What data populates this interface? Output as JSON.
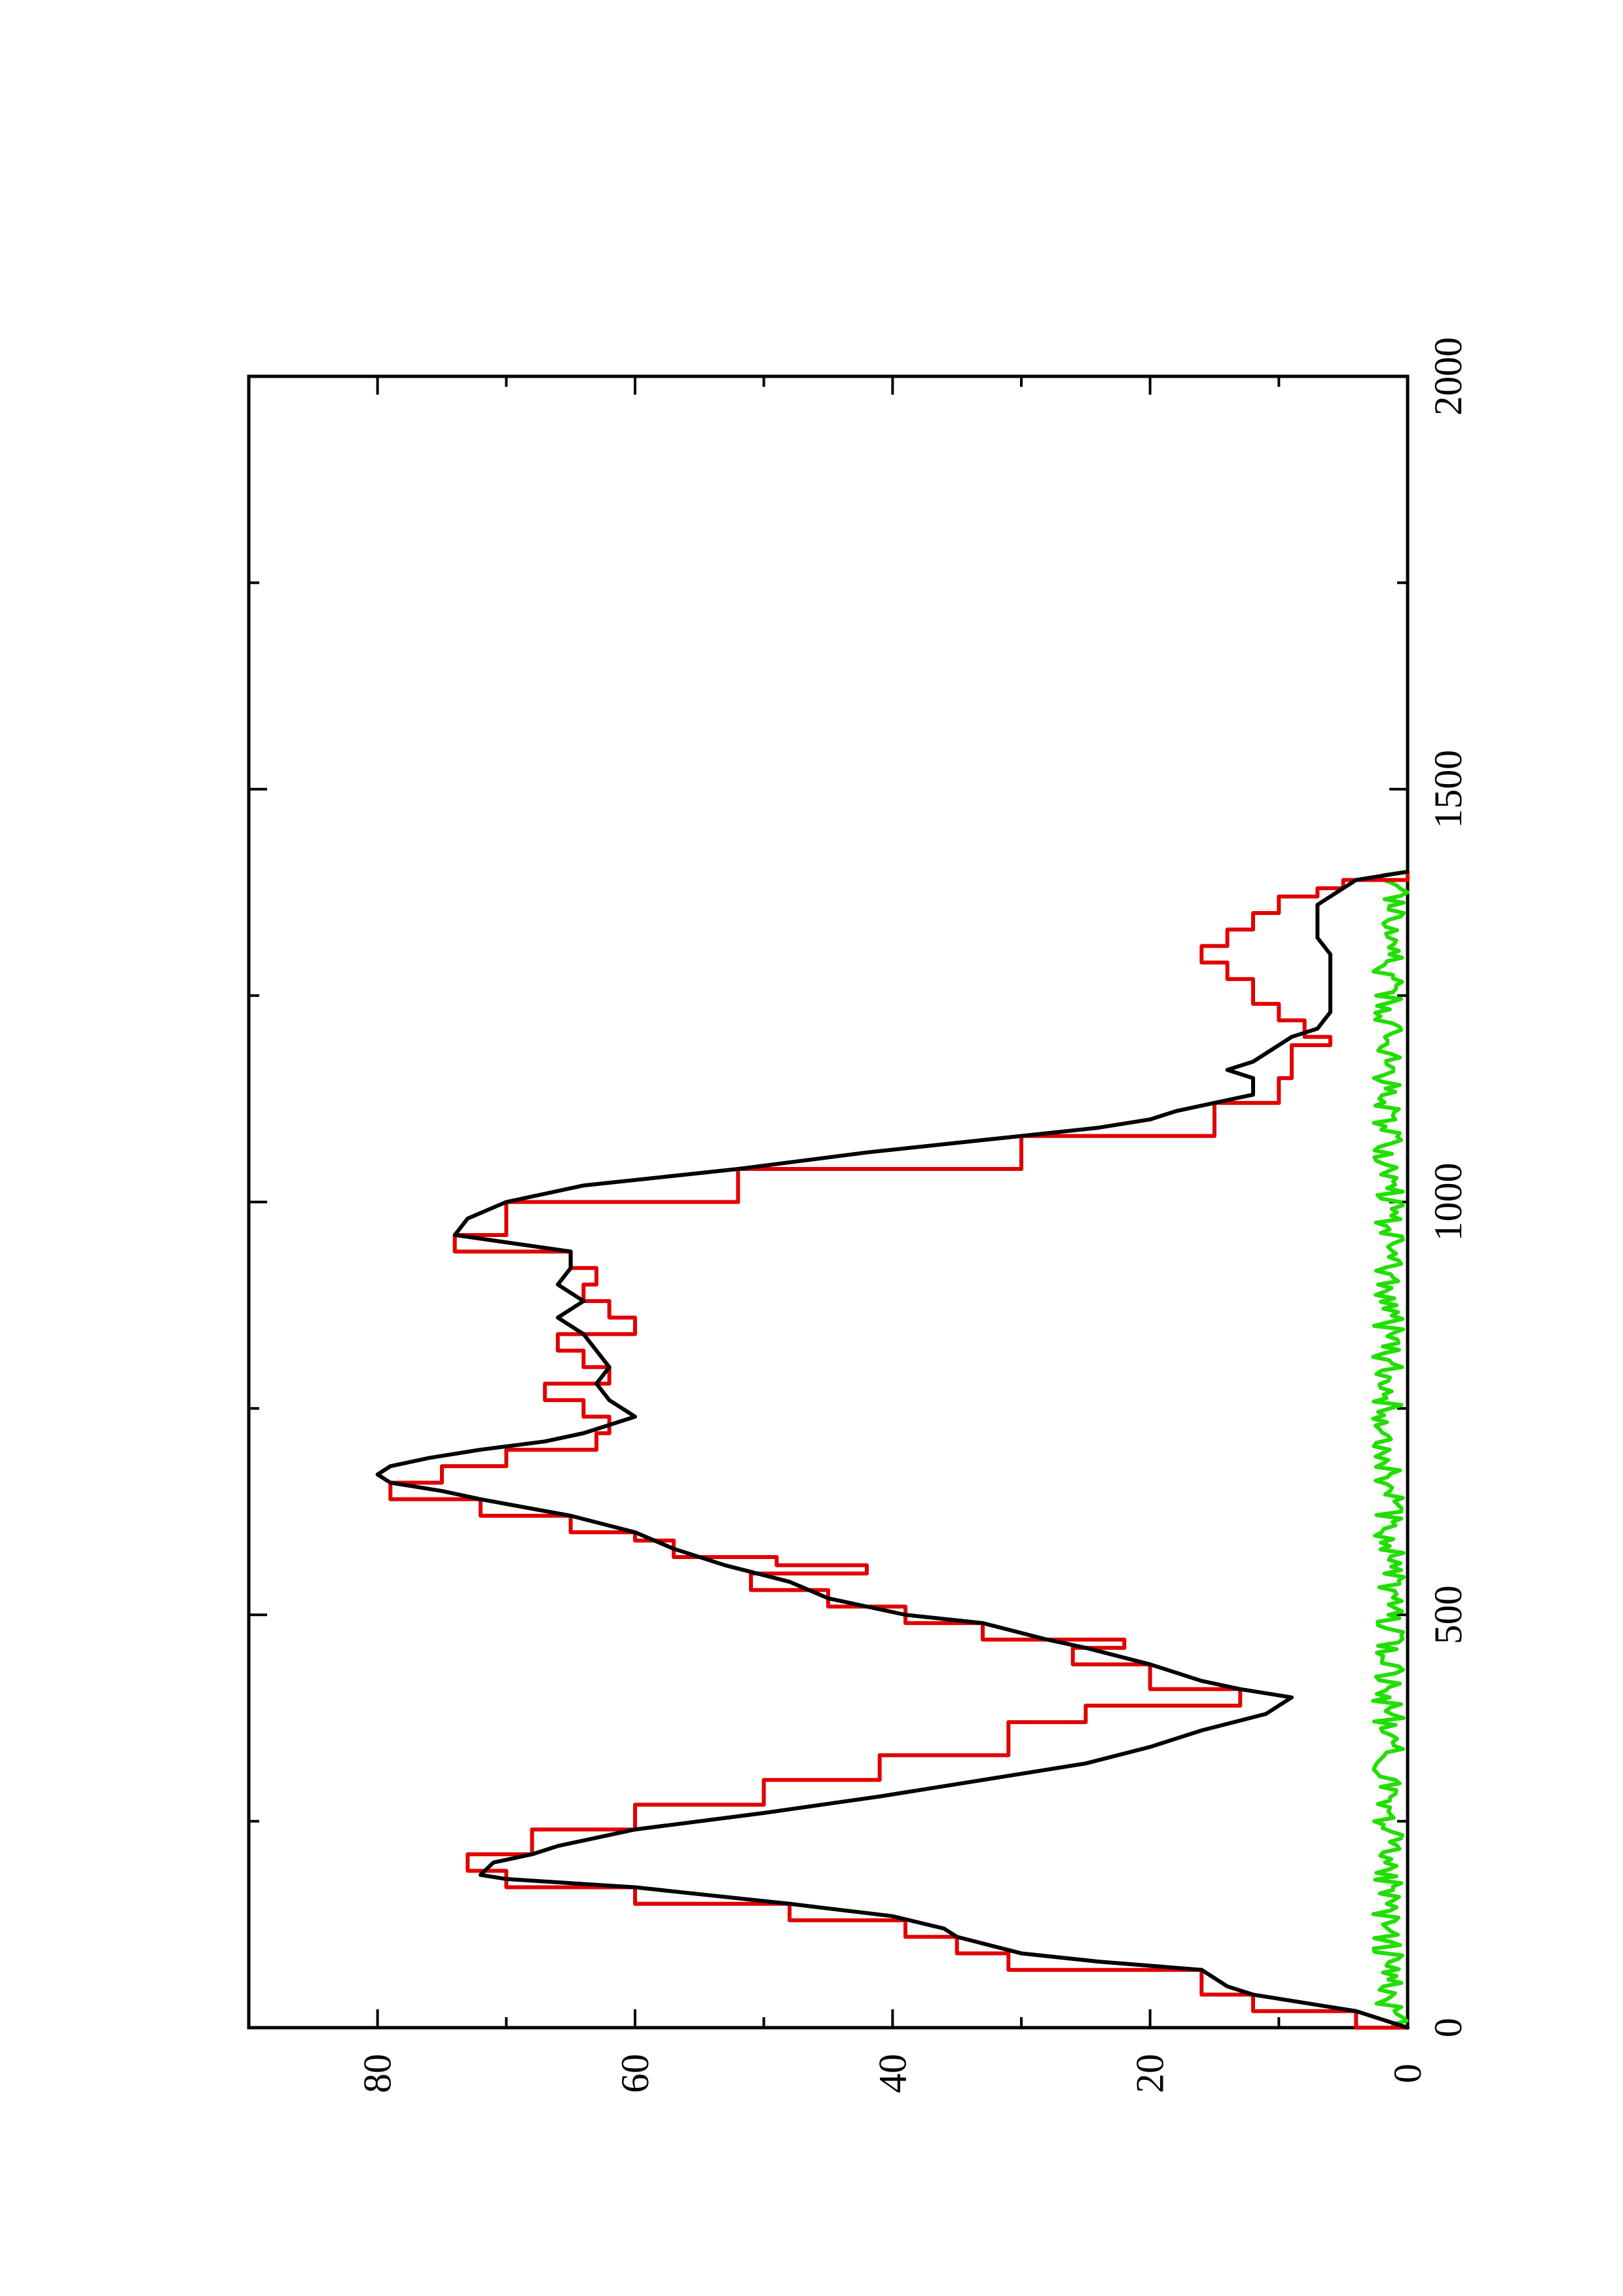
{
  "chart_data": {
    "type": "line",
    "title": "",
    "xlabel": "",
    "ylabel": "",
    "orientation": "rotated-90-counterclockwise",
    "xlim": [
      0,
      2000
    ],
    "ylim": [
      0,
      90
    ],
    "x_ticks": [
      0,
      500,
      1000,
      1500,
      2000
    ],
    "x_tick_labels": [
      "0",
      "500",
      "1000",
      "1500",
      "2000"
    ],
    "x_minor_ticks": [
      250,
      750,
      1250,
      1750
    ],
    "y_ticks": [
      0,
      20,
      40,
      60,
      80
    ],
    "y_tick_labels": [
      "0",
      "20",
      "40",
      "60",
      "80"
    ],
    "y_minor_ticks": [
      10,
      30,
      50,
      70
    ],
    "grid": false,
    "legend": "none",
    "series": [
      {
        "color": "#000000",
        "step": false,
        "points": [
          [
            0,
            0
          ],
          [
            10,
            2
          ],
          [
            20,
            4
          ],
          [
            40,
            12
          ],
          [
            50,
            14
          ],
          [
            70,
            16
          ],
          [
            80,
            24
          ],
          [
            90,
            30
          ],
          [
            110,
            35
          ],
          [
            120,
            36
          ],
          [
            135,
            40
          ],
          [
            150,
            48
          ],
          [
            170,
            60
          ],
          [
            180,
            70
          ],
          [
            185,
            72
          ],
          [
            200,
            71
          ],
          [
            210,
            68
          ],
          [
            220,
            66
          ],
          [
            240,
            60
          ],
          [
            260,
            50
          ],
          [
            280,
            41
          ],
          [
            300,
            33
          ],
          [
            320,
            25
          ],
          [
            340,
            20
          ],
          [
            360,
            16
          ],
          [
            380,
            11
          ],
          [
            390,
            10
          ],
          [
            400,
            9
          ],
          [
            410,
            13
          ],
          [
            420,
            16
          ],
          [
            440,
            20
          ],
          [
            460,
            25
          ],
          [
            470,
            28
          ],
          [
            490,
            33
          ],
          [
            500,
            39
          ],
          [
            520,
            45
          ],
          [
            540,
            48
          ],
          [
            560,
            53
          ],
          [
            580,
            57
          ],
          [
            600,
            60
          ],
          [
            620,
            65
          ],
          [
            640,
            72
          ],
          [
            650,
            75
          ],
          [
            660,
            79
          ],
          [
            670,
            80
          ],
          [
            680,
            79
          ],
          [
            690,
            76
          ],
          [
            700,
            72
          ],
          [
            710,
            67
          ],
          [
            720,
            64
          ],
          [
            730,
            62
          ],
          [
            740,
            60
          ],
          [
            760,
            62
          ],
          [
            780,
            63
          ],
          [
            800,
            62
          ],
          [
            820,
            63
          ],
          [
            840,
            64
          ],
          [
            860,
            66
          ],
          [
            880,
            64
          ],
          [
            900,
            66
          ],
          [
            920,
            65
          ],
          [
            940,
            65
          ],
          [
            960,
            74
          ],
          [
            980,
            73
          ],
          [
            1000,
            70
          ],
          [
            1020,
            64
          ],
          [
            1040,
            52
          ],
          [
            1060,
            42
          ],
          [
            1080,
            30
          ],
          [
            1090,
            24
          ],
          [
            1100,
            20
          ],
          [
            1110,
            18
          ],
          [
            1120,
            15
          ],
          [
            1130,
            12
          ],
          [
            1150,
            12
          ],
          [
            1160,
            14
          ],
          [
            1170,
            12
          ],
          [
            1180,
            11
          ],
          [
            1190,
            10
          ],
          [
            1200,
            9
          ],
          [
            1210,
            7
          ],
          [
            1230,
            6
          ],
          [
            1250,
            6
          ],
          [
            1270,
            6
          ],
          [
            1290,
            6
          ],
          [
            1300,
            6
          ],
          [
            1320,
            7
          ],
          [
            1340,
            7
          ],
          [
            1360,
            7
          ],
          [
            1370,
            6
          ],
          [
            1380,
            5
          ],
          [
            1390,
            4
          ],
          [
            1400,
            0
          ]
        ]
      },
      {
        "color": "#e00000",
        "step": true,
        "points": [
          [
            0,
            0
          ],
          [
            20,
            4
          ],
          [
            40,
            12
          ],
          [
            70,
            16
          ],
          [
            90,
            31
          ],
          [
            110,
            35
          ],
          [
            130,
            39
          ],
          [
            150,
            48
          ],
          [
            170,
            60
          ],
          [
            190,
            70
          ],
          [
            210,
            73
          ],
          [
            240,
            68
          ],
          [
            270,
            60
          ],
          [
            300,
            50
          ],
          [
            330,
            41
          ],
          [
            370,
            31
          ],
          [
            390,
            25
          ],
          [
            410,
            13
          ],
          [
            440,
            20
          ],
          [
            460,
            26
          ],
          [
            470,
            22
          ],
          [
            490,
            33
          ],
          [
            510,
            39
          ],
          [
            530,
            45
          ],
          [
            550,
            51
          ],
          [
            560,
            42
          ],
          [
            570,
            49
          ],
          [
            590,
            57
          ],
          [
            600,
            60
          ],
          [
            620,
            65
          ],
          [
            640,
            72
          ],
          [
            660,
            79
          ],
          [
            680,
            75
          ],
          [
            700,
            70
          ],
          [
            720,
            63
          ],
          [
            740,
            62
          ],
          [
            760,
            64
          ],
          [
            780,
            67
          ],
          [
            800,
            62
          ],
          [
            820,
            64
          ],
          [
            840,
            66
          ],
          [
            860,
            60
          ],
          [
            880,
            62
          ],
          [
            900,
            64
          ],
          [
            920,
            63
          ],
          [
            940,
            65
          ],
          [
            960,
            74
          ],
          [
            1000,
            70
          ],
          [
            1040,
            52
          ],
          [
            1080,
            30
          ],
          [
            1120,
            15
          ],
          [
            1150,
            10
          ],
          [
            1190,
            9
          ],
          [
            1200,
            6
          ],
          [
            1220,
            8
          ],
          [
            1240,
            10
          ],
          [
            1270,
            12
          ],
          [
            1290,
            14
          ],
          [
            1310,
            16
          ],
          [
            1330,
            14
          ],
          [
            1350,
            12
          ],
          [
            1370,
            10
          ],
          [
            1380,
            7
          ],
          [
            1390,
            5
          ],
          [
            1400,
            0
          ]
        ]
      },
      {
        "color": "#22dd00",
        "step": false,
        "noise": true,
        "points": [
          [
            0,
            0
          ],
          [
            25,
            2
          ],
          [
            50,
            1
          ],
          [
            75,
            2
          ],
          [
            100,
            1
          ],
          [
            125,
            2
          ],
          [
            150,
            1
          ],
          [
            175,
            2
          ],
          [
            200,
            1
          ],
          [
            225,
            2
          ],
          [
            250,
            1
          ],
          [
            275,
            2
          ],
          [
            300,
            1
          ],
          [
            325,
            2
          ],
          [
            350,
            1
          ],
          [
            375,
            2
          ],
          [
            400,
            1
          ],
          [
            425,
            2
          ],
          [
            450,
            1
          ],
          [
            475,
            2
          ],
          [
            500,
            1
          ],
          [
            525,
            2
          ],
          [
            550,
            1
          ],
          [
            575,
            2
          ],
          [
            600,
            1
          ],
          [
            625,
            2
          ],
          [
            650,
            1
          ],
          [
            675,
            2
          ],
          [
            700,
            1
          ],
          [
            725,
            2
          ],
          [
            750,
            1
          ],
          [
            775,
            2
          ],
          [
            800,
            1
          ],
          [
            825,
            2
          ],
          [
            850,
            1
          ],
          [
            875,
            2
          ],
          [
            900,
            1
          ],
          [
            925,
            2
          ],
          [
            950,
            1
          ],
          [
            975,
            2
          ],
          [
            1000,
            1
          ],
          [
            1025,
            2
          ],
          [
            1050,
            1
          ],
          [
            1075,
            2
          ],
          [
            1100,
            1
          ],
          [
            1125,
            2
          ],
          [
            1150,
            1
          ],
          [
            1175,
            2
          ],
          [
            1200,
            1
          ],
          [
            1225,
            2
          ],
          [
            1250,
            1
          ],
          [
            1275,
            2
          ],
          [
            1300,
            1
          ],
          [
            1325,
            2
          ],
          [
            1350,
            1
          ],
          [
            1375,
            2
          ],
          [
            1400,
            0
          ]
        ]
      }
    ]
  }
}
